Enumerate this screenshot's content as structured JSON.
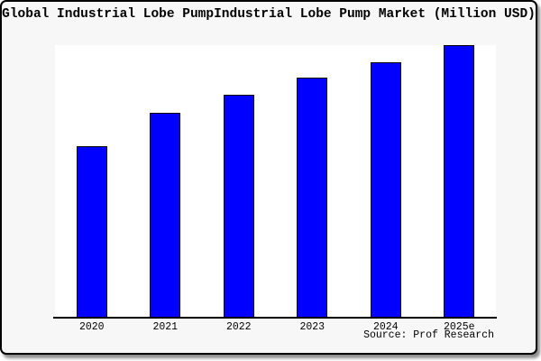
{
  "window": {
    "title": "Global Industrial Lobe PumpIndustrial Lobe Pump Market (Million USD)",
    "source_label": "Source: Prof Research"
  },
  "chart_data": {
    "type": "bar",
    "title": "Global Industrial Lobe PumpIndustrial Lobe Pump Market (Million USD)",
    "categories": [
      "2020",
      "2021",
      "2022",
      "2023",
      "2024",
      "2025e"
    ],
    "values": [
      62.8,
      75.2,
      81.6,
      87.9,
      93.7,
      100
    ],
    "unit": "Million USD",
    "xlabel": "",
    "ylabel": "",
    "ylim": [
      0,
      100
    ],
    "y_axis_ticks_shown": false,
    "grid": false,
    "legend": false,
    "bar_color": "#0000FF",
    "bar_border_color": "#000000",
    "source": "Source: Prof Research"
  },
  "colors": {
    "canvas_bg": "#F7F7F7",
    "plot_bg": "#FFFFFF",
    "frame_border": "#000000",
    "text": "#000000"
  }
}
